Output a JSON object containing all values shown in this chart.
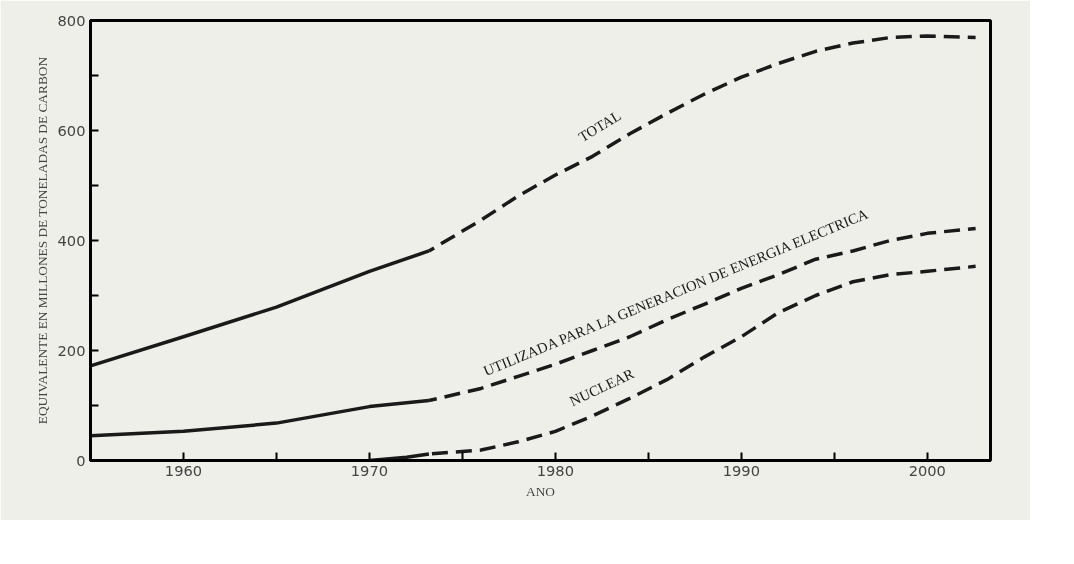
{
  "chart_data": {
    "type": "line",
    "xlabel": "ANO",
    "ylabel": "EQUIVALENTE EN MILLONES DE TONELADAS DE CARBON",
    "xlim": [
      1955,
      2003.4
    ],
    "ylim": [
      0,
      800
    ],
    "xticks": [
      1960,
      {
        "value": 1965,
        "label": null
      },
      1970,
      {
        "value": 1975,
        "label": null
      },
      1980,
      {
        "value": 1985,
        "label": null
      },
      1990,
      {
        "value": 1995,
        "label": null
      },
      2000
    ],
    "yticks": [
      0,
      {
        "value": 100,
        "label": null
      },
      200,
      {
        "value": 300,
        "label": null
      },
      400,
      {
        "value": 500,
        "label": null
      },
      600,
      {
        "value": 700,
        "label": null
      },
      800
    ],
    "grid": false,
    "marker": "none",
    "series": [
      {
        "color": "#1a1a1a",
        "line_style": "solid",
        "x": [
          1955,
          1960,
          1965,
          1970,
          1973.2
        ],
        "values": [
          172,
          225,
          279,
          344,
          381
        ]
      },
      {
        "name": "TOTAL",
        "color": "#1a1a1a",
        "line_style": "dashed",
        "x": [
          1973.2,
          1976,
          1978,
          1980,
          1982,
          1984,
          1986,
          1988,
          1990,
          1992,
          1994,
          1996,
          1998,
          2000,
          2002.6
        ],
        "values": [
          381,
          437,
          481,
          519,
          553,
          594,
          631,
          666,
          697,
          722,
          744,
          759,
          769,
          772,
          769
        ]
      },
      {
        "color": "#1a1a1a",
        "line_style": "solid",
        "x": [
          1955,
          1960,
          1965,
          1970,
          1973.2
        ],
        "values": [
          45,
          53,
          68,
          98,
          109
        ]
      },
      {
        "name": "UTILIZADA PARA LA GENERACION DE ENERGIA ELECTRICA",
        "color": "#1a1a1a",
        "line_style": "dashed",
        "x": [
          1973.2,
          1976,
          1978,
          1980,
          1982,
          1984,
          1986,
          1988,
          1990,
          1992,
          1994,
          1996,
          1998,
          2000,
          2002.6
        ],
        "values": [
          109,
          131,
          153,
          175,
          200,
          225,
          256,
          284,
          313,
          338,
          366,
          381,
          400,
          413,
          422
        ]
      },
      {
        "color": "#1a1a1a",
        "line_style": "solid",
        "x": [
          1970,
          1972,
          1973.2
        ],
        "values": [
          0,
          6,
          12
        ]
      },
      {
        "name": "NUCLEAR",
        "color": "#1a1a1a",
        "line_style": "dashed",
        "x": [
          1973.2,
          1976,
          1978,
          1980,
          1982,
          1984,
          1986,
          1988,
          1990,
          1992,
          1994,
          1996,
          1998,
          2000,
          2002.6
        ],
        "values": [
          12,
          19,
          34,
          53,
          81,
          113,
          147,
          188,
          225,
          269,
          300,
          325,
          338,
          344,
          353
        ]
      }
    ]
  }
}
